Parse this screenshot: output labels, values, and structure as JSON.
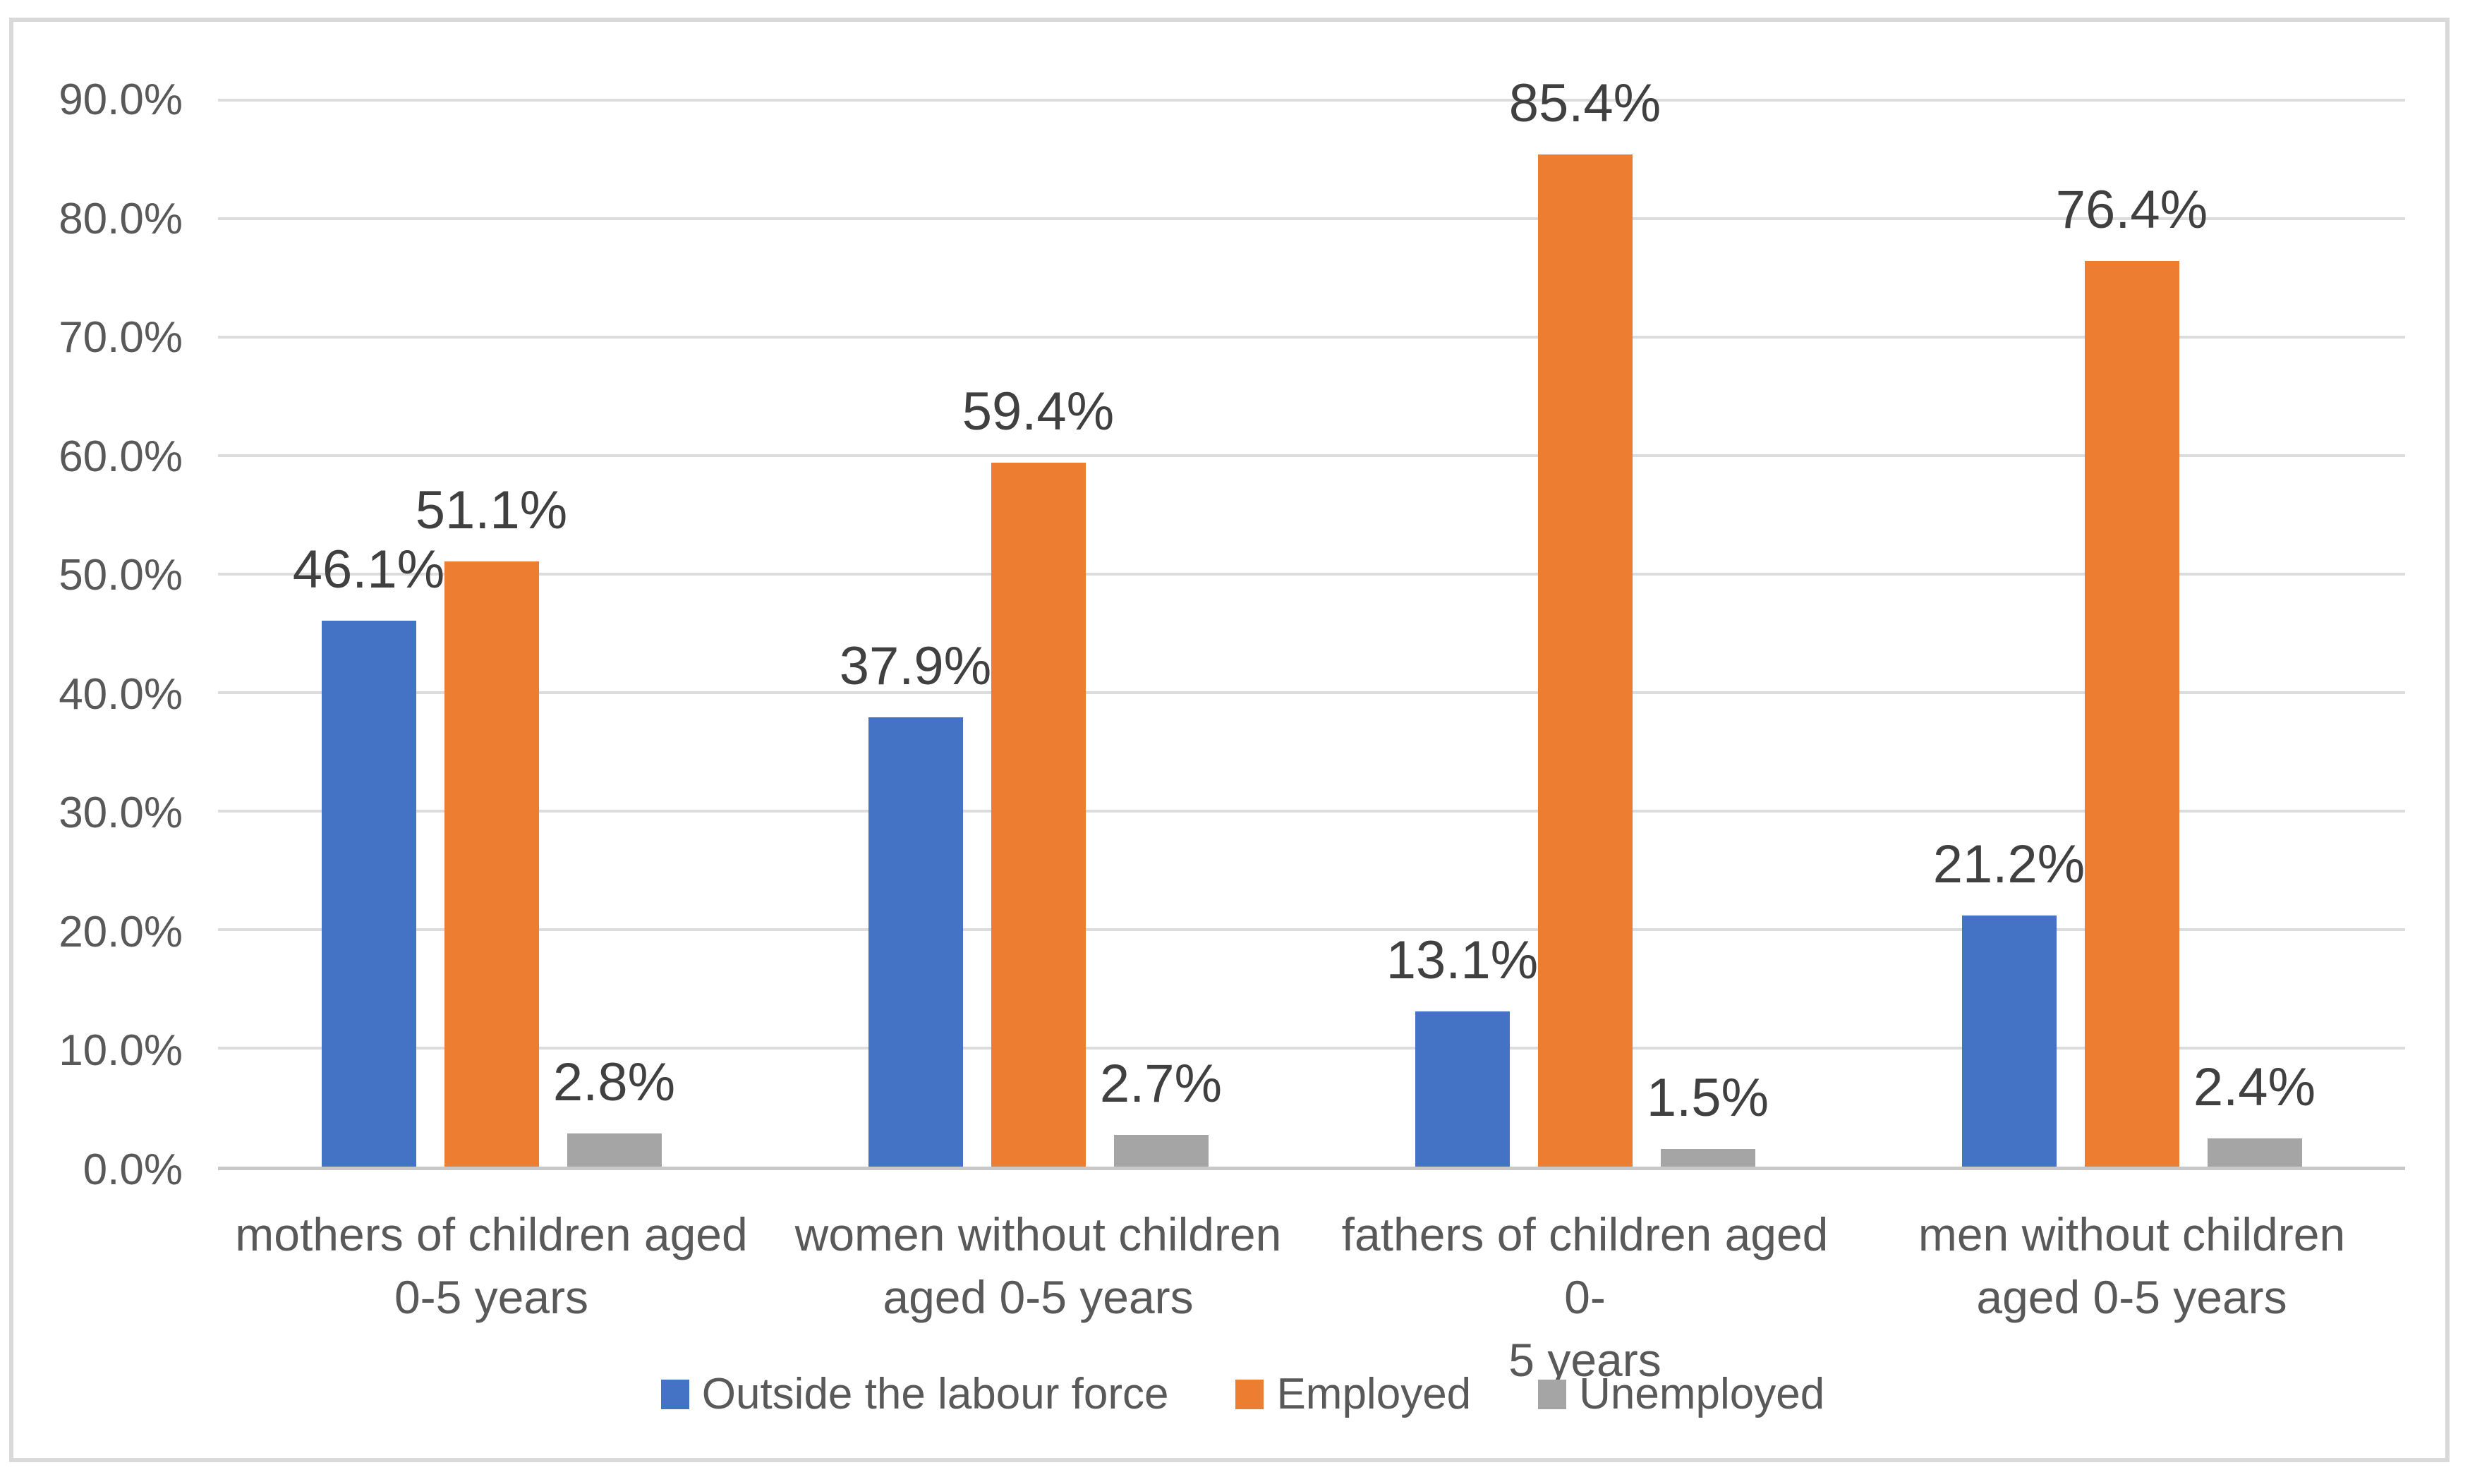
{
  "chart_data": {
    "type": "bar",
    "title": "",
    "categories": [
      "mothers of children aged 0-5 years",
      "women without children aged 0-5 years",
      "fathers of children aged 0-5 years",
      "men without children aged 0-5 years"
    ],
    "category_label_lines": [
      [
        "mothers of children aged",
        "0-5 years"
      ],
      [
        "women without children",
        "aged 0-5 years"
      ],
      [
        "fathers of children aged 0-",
        "5 years"
      ],
      [
        "men without children",
        "aged 0-5 years"
      ]
    ],
    "series": [
      {
        "name": "Outside the labour force",
        "color": "#4472C4",
        "values": [
          46.1,
          37.9,
          13.1,
          21.2
        ]
      },
      {
        "name": "Employed",
        "color": "#ED7D31",
        "values": [
          51.1,
          59.4,
          85.4,
          76.4
        ]
      },
      {
        "name": "Unemployed",
        "color": "#A5A5A5",
        "values": [
          2.8,
          2.7,
          1.5,
          2.4
        ]
      }
    ],
    "data_label_format": "one-decimal-percent",
    "y_axis": {
      "min": 0,
      "max": 90,
      "step": 10,
      "tick_labels": [
        "0.0%",
        "10.0%",
        "20.0%",
        "30.0%",
        "40.0%",
        "50.0%",
        "60.0%",
        "70.0%",
        "80.0%",
        "90.0%"
      ]
    },
    "grid": true,
    "legend_position": "bottom",
    "xlabel": "",
    "ylabel": ""
  },
  "colors": {
    "gridline": "#DCDCDC",
    "axis_line": "#C8C8C8",
    "frame_border": "#D9D9D9",
    "axis_text": "#595959",
    "data_label_text": "#404040",
    "background": "#FFFFFF"
  }
}
